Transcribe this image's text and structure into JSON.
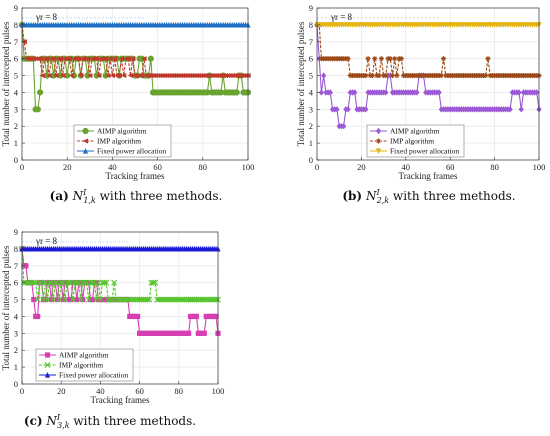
{
  "colors": {
    "aimp_a": "#6aa331",
    "imp_a": "#c0392b",
    "fixed_a": "#1f6fc5",
    "aimp_b": "#9b59d6",
    "imp_b": "#9c4a1a",
    "fixed_b": "#e3b514",
    "aimp_c": "#d63fb3",
    "imp_c": "#55c32b",
    "fixed_c": "#1a1ad8"
  },
  "chart_data": [
    {
      "type": "line",
      "caption": {
        "label": "(a)",
        "sym": "N",
        "sub": "1,k",
        "sup": "I",
        "rest": "with three methods."
      },
      "gamma_label": "γr = 8",
      "xlabel": "Tracking frames",
      "ylabel": "Total number of intercepted pulses",
      "xlim": [
        0,
        100
      ],
      "ylim": [
        0,
        9
      ],
      "xticks": [
        0,
        20,
        40,
        60,
        80,
        100
      ],
      "yticks": [
        0,
        1,
        2,
        3,
        4,
        5,
        6,
        7,
        8,
        9
      ],
      "legend_position": "bottom-center",
      "series": [
        {
          "name": "AIMP algorithm",
          "color_key": "aimp_a",
          "marker": "circle",
          "values": [
            8,
            6,
            6,
            6,
            6,
            6,
            3,
            3,
            4,
            6,
            6,
            5,
            6,
            6,
            5,
            6,
            6,
            5,
            6,
            6,
            5,
            6,
            6,
            5,
            6,
            6,
            5,
            6,
            6,
            5,
            6,
            6,
            6,
            5,
            6,
            6,
            6,
            5,
            6,
            6,
            6,
            6,
            6,
            5,
            6,
            6,
            6,
            6,
            6,
            6,
            5,
            5,
            6,
            6,
            5,
            5,
            5,
            6,
            4,
            4,
            4,
            4,
            4,
            4,
            4,
            4,
            4,
            4,
            4,
            4,
            4,
            4,
            4,
            4,
            4,
            4,
            4,
            4,
            4,
            4,
            4,
            4,
            4,
            5,
            4,
            4,
            4,
            4,
            4,
            5,
            4,
            4,
            4,
            4,
            4,
            4,
            5,
            5,
            4,
            4,
            4
          ]
        },
        {
          "name": "IMP algorithm",
          "color_key": "imp_a",
          "marker": "triangle-left",
          "values": [
            8,
            7,
            6,
            6,
            6,
            6,
            6,
            6,
            6,
            5,
            6,
            6,
            5,
            6,
            6,
            5,
            6,
            6,
            5,
            6,
            6,
            6,
            5,
            6,
            6,
            6,
            5,
            6,
            6,
            6,
            5,
            6,
            6,
            6,
            5,
            6,
            6,
            6,
            5,
            6,
            5,
            6,
            5,
            5,
            6,
            5,
            6,
            6,
            5,
            6,
            5,
            5,
            5,
            5,
            6,
            5,
            5,
            5,
            5,
            5,
            5,
            5,
            5,
            5,
            5,
            5,
            5,
            5,
            5,
            5,
            5,
            5,
            5,
            5,
            5,
            5,
            5,
            5,
            5,
            5,
            5,
            5,
            5,
            5,
            5,
            5,
            5,
            5,
            5,
            5,
            5,
            5,
            5,
            5,
            5,
            5,
            5,
            5,
            5,
            5,
            5
          ]
        },
        {
          "name": "Fixed power allocation",
          "color_key": "fixed_a",
          "marker": "triangle-up",
          "values": [
            8,
            8,
            8,
            8,
            8,
            8,
            8,
            8,
            8,
            8,
            8,
            8,
            8,
            8,
            8,
            8,
            8,
            8,
            8,
            8,
            8,
            8,
            8,
            8,
            8,
            8,
            8,
            8,
            8,
            8,
            8,
            8,
            8,
            8,
            8,
            8,
            8,
            8,
            8,
            8,
            8,
            8,
            8,
            8,
            8,
            8,
            8,
            8,
            8,
            8,
            8,
            8,
            8,
            8,
            8,
            8,
            8,
            8,
            8,
            8,
            8,
            8,
            8,
            8,
            8,
            8,
            8,
            8,
            8,
            8,
            8,
            8,
            8,
            8,
            8,
            8,
            8,
            8,
            8,
            8,
            8,
            8,
            8,
            8,
            8,
            8,
            8,
            8,
            8,
            8,
            8,
            8,
            8,
            8,
            8,
            8,
            8,
            8,
            8,
            8,
            8
          ]
        }
      ]
    },
    {
      "type": "line",
      "caption": {
        "label": "(b)",
        "sym": "N",
        "sub": "2,k",
        "sup": "I",
        "rest": "with three methods."
      },
      "gamma_label": "γr = 8",
      "xlabel": "Tracking frames",
      "ylabel": "Total number of intercepted pulses",
      "xlim": [
        0,
        100
      ],
      "ylim": [
        0,
        9
      ],
      "xticks": [
        0,
        20,
        40,
        60,
        80,
        100
      ],
      "yticks": [
        0,
        1,
        2,
        3,
        4,
        5,
        6,
        7,
        8,
        9
      ],
      "legend_position": "bottom-center",
      "series": [
        {
          "name": "AIMP algorithm",
          "color_key": "aimp_b",
          "marker": "diamond",
          "values": [
            8,
            6,
            4,
            5,
            4,
            4,
            4,
            3,
            3,
            3,
            2,
            2,
            2,
            3,
            3,
            4,
            4,
            4,
            3,
            3,
            3,
            3,
            3,
            4,
            4,
            4,
            4,
            4,
            4,
            4,
            4,
            4,
            5,
            5,
            4,
            4,
            4,
            4,
            4,
            4,
            4,
            4,
            4,
            4,
            4,
            4,
            5,
            5,
            5,
            4,
            4,
            4,
            4,
            4,
            4,
            4,
            3,
            3,
            3,
            3,
            3,
            3,
            3,
            3,
            3,
            3,
            3,
            3,
            3,
            3,
            3,
            3,
            3,
            3,
            3,
            3,
            3,
            3,
            3,
            3,
            3,
            3,
            3,
            3,
            3,
            3,
            3,
            3,
            4,
            4,
            4,
            4,
            3,
            4,
            4,
            4,
            4,
            4,
            4,
            4,
            3
          ]
        },
        {
          "name": "IMP algorithm",
          "color_key": "imp_b",
          "marker": "star",
          "values": [
            8,
            8,
            6,
            6,
            6,
            6,
            6,
            6,
            6,
            6,
            6,
            6,
            6,
            6,
            6,
            5,
            5,
            5,
            5,
            5,
            5,
            5,
            5,
            6,
            5,
            5,
            6,
            5,
            5,
            6,
            5,
            5,
            6,
            6,
            5,
            6,
            5,
            6,
            6,
            5,
            5,
            5,
            5,
            5,
            5,
            5,
            5,
            5,
            5,
            5,
            5,
            5,
            5,
            5,
            5,
            5,
            5,
            6,
            5,
            5,
            5,
            5,
            5,
            5,
            5,
            5,
            5,
            5,
            5,
            5,
            5,
            5,
            5,
            5,
            5,
            5,
            5,
            6,
            5,
            5,
            5,
            5,
            5,
            5,
            5,
            5,
            5,
            5,
            5,
            5,
            5,
            5,
            5,
            5,
            5,
            5,
            5,
            5,
            5,
            5,
            5
          ]
        },
        {
          "name": "Fixed power allocation",
          "color_key": "fixed_b",
          "marker": "triangle-down",
          "values": [
            8,
            8,
            8,
            8,
            8,
            8,
            8,
            8,
            8,
            8,
            8,
            8,
            8,
            8,
            8,
            8,
            8,
            8,
            8,
            8,
            8,
            8,
            8,
            8,
            8,
            8,
            8,
            8,
            8,
            8,
            8,
            8,
            8,
            8,
            8,
            8,
            8,
            8,
            8,
            8,
            8,
            8,
            8,
            8,
            8,
            8,
            8,
            8,
            8,
            8,
            8,
            8,
            8,
            8,
            8,
            8,
            8,
            8,
            8,
            8,
            8,
            8,
            8,
            8,
            8,
            8,
            8,
            8,
            8,
            8,
            8,
            8,
            8,
            8,
            8,
            8,
            8,
            8,
            8,
            8,
            8,
            8,
            8,
            8,
            8,
            8,
            8,
            8,
            8,
            8,
            8,
            8,
            8,
            8,
            8,
            8,
            8,
            8,
            8,
            8,
            8
          ]
        }
      ]
    },
    {
      "type": "line",
      "caption": {
        "label": "(c)",
        "sym": "N",
        "sub": "3,k",
        "sup": "I",
        "rest": "with three methods."
      },
      "gamma_label": "γr = 8",
      "xlabel": "Tracking frames",
      "ylabel": "Total number of intercepted pulses",
      "xlim": [
        0,
        100
      ],
      "ylim": [
        0,
        9
      ],
      "xticks": [
        0,
        20,
        40,
        60,
        80,
        100
      ],
      "yticks": [
        0,
        1,
        2,
        3,
        4,
        5,
        6,
        7,
        8,
        9
      ],
      "legend_position": "bottom-center",
      "series": [
        {
          "name": "AIMP algorithm",
          "color_key": "aimp_c",
          "marker": "square",
          "values": [
            8,
            7,
            7,
            6,
            6,
            6,
            5,
            4,
            4,
            6,
            6,
            5,
            5,
            6,
            6,
            5,
            6,
            6,
            5,
            6,
            6,
            5,
            6,
            6,
            5,
            5,
            6,
            6,
            5,
            6,
            6,
            5,
            6,
            6,
            6,
            5,
            5,
            6,
            6,
            5,
            5,
            5,
            5,
            5,
            5,
            5,
            5,
            5,
            5,
            5,
            5,
            5,
            5,
            5,
            5,
            4,
            4,
            4,
            4,
            4,
            3,
            3,
            3,
            3,
            3,
            3,
            3,
            3,
            3,
            3,
            3,
            3,
            3,
            3,
            3,
            3,
            3,
            3,
            3,
            3,
            3,
            3,
            3,
            3,
            3,
            3,
            4,
            4,
            4,
            4,
            3,
            3,
            3,
            3,
            4,
            4,
            4,
            4,
            4,
            4,
            3
          ]
        },
        {
          "name": "IMP algorithm",
          "color_key": "imp_c",
          "marker": "cross",
          "values": [
            8,
            6,
            6,
            6,
            6,
            6,
            6,
            6,
            5,
            6,
            6,
            5,
            6,
            5,
            6,
            6,
            5,
            6,
            6,
            5,
            6,
            6,
            5,
            6,
            6,
            6,
            5,
            6,
            6,
            6,
            5,
            6,
            6,
            6,
            5,
            6,
            6,
            6,
            5,
            6,
            5,
            6,
            6,
            6,
            5,
            5,
            5,
            6,
            5,
            5,
            5,
            5,
            5,
            5,
            5,
            5,
            5,
            5,
            5,
            5,
            5,
            5,
            5,
            5,
            5,
            5,
            6,
            6,
            6,
            5,
            5,
            5,
            5,
            5,
            5,
            5,
            5,
            5,
            5,
            5,
            5,
            5,
            5,
            5,
            5,
            5,
            5,
            5,
            5,
            5,
            5,
            5,
            5,
            5,
            5,
            5,
            5,
            5,
            5,
            5,
            5
          ]
        },
        {
          "name": "Fixed power allocation",
          "color_key": "fixed_c",
          "marker": "triangle-up",
          "values": [
            8,
            8,
            8,
            8,
            8,
            8,
            8,
            8,
            8,
            8,
            8,
            8,
            8,
            8,
            8,
            8,
            8,
            8,
            8,
            8,
            8,
            8,
            8,
            8,
            8,
            8,
            8,
            8,
            8,
            8,
            8,
            8,
            8,
            8,
            8,
            8,
            8,
            8,
            8,
            8,
            8,
            8,
            8,
            8,
            8,
            8,
            8,
            8,
            8,
            8,
            8,
            8,
            8,
            8,
            8,
            8,
            8,
            8,
            8,
            8,
            8,
            8,
            8,
            8,
            8,
            8,
            8,
            8,
            8,
            8,
            8,
            8,
            8,
            8,
            8,
            8,
            8,
            8,
            8,
            8,
            8,
            8,
            8,
            8,
            8,
            8,
            8,
            8,
            8,
            8,
            8,
            8,
            8,
            8,
            8,
            8,
            8,
            8,
            8,
            8,
            8
          ]
        }
      ]
    }
  ]
}
